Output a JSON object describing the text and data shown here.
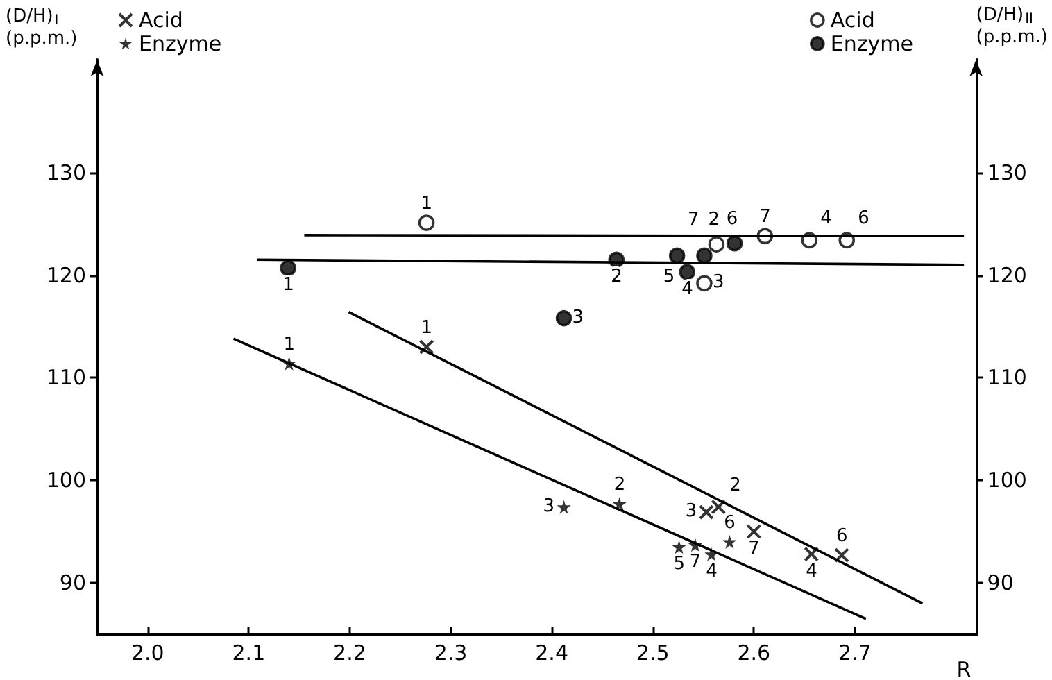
{
  "chart_data": {
    "type": "scatter",
    "xlabel": "R",
    "ylabel": "(D/H)$_{I}$\n(p.p.m.)",
    "y2label": "(D/H)$_{II}$\n(p.p.m.)",
    "xlim": [
      1.95,
      2.82
    ],
    "xticks": [
      {
        "value": 2,
        "label": "2.0"
      },
      2.1,
      2.2,
      2.3,
      2.4,
      2.5,
      2.6,
      2.7
    ],
    "ylim": [
      85,
      141
    ],
    "yticks": [
      90,
      100,
      110,
      120,
      130
    ],
    "y2lim": [
      85,
      141
    ],
    "y2ticks": [
      90,
      100,
      110,
      120,
      130
    ],
    "grid": false,
    "legend": "top",
    "series": [
      {
        "name": "Acid",
        "color": "#000000",
        "marker": "cross",
        "x": [
          2.276,
          2.565,
          2.553,
          2.6,
          2.657,
          2.687
        ],
        "values": [
          113.0,
          97.4,
          96.9,
          95.0,
          92.8,
          92.7
        ]
      },
      {
        "name": "Enzyme",
        "color": "#000000",
        "marker": "star",
        "x": [
          2.14,
          2.412,
          2.467,
          2.526,
          2.542,
          2.558,
          2.576
        ],
        "values": [
          111.4,
          97.4,
          97.7,
          93.5,
          93.7,
          92.8,
          94.0
        ]
      },
      {
        "name": "Acid",
        "color": "#ffffff",
        "marker": "circle",
        "axis": "y2",
        "x": [
          2.276,
          2.563,
          2.551,
          2.611,
          2.655,
          2.692
        ],
        "values": [
          125.1,
          123.0,
          119.2,
          123.8,
          123.4,
          123.4
        ]
      },
      {
        "name": "Enzyme",
        "color": "#000000",
        "marker": "circle",
        "axis": "y2",
        "x": [
          2.139,
          2.464,
          2.412,
          2.524,
          2.551,
          2.534,
          2.581
        ],
        "values": [
          120.7,
          121.5,
          115.8,
          121.9,
          121.9,
          120.3,
          123.1
        ]
      },
      {
        "type": "line",
        "color": "#000000",
        "x": [
          2.199,
          2.767
        ],
        "values": [
          116.4,
          88.0
        ]
      },
      {
        "type": "line",
        "color": "#000000",
        "x": [
          2.085,
          2.711
        ],
        "values": [
          113.8,
          86.5
        ]
      },
      {
        "type": "line",
        "color": "#000000",
        "axis": "y2",
        "x": [
          2.155,
          2.808
        ],
        "values": [
          123.9,
          123.8
        ]
      },
      {
        "type": "line",
        "color": "#000000",
        "axis": "y2",
        "x": [
          2.108,
          2.808
        ],
        "values": [
          121.5,
          121.0
        ]
      }
    ],
    "annotations": [
      {
        "text": "1",
        "x": 2.276,
        "y": 113.0
      },
      {
        "text": "2",
        "x": 2.565,
        "y": 97.4
      },
      {
        "text": "3",
        "x": 2.553,
        "y": 96.9
      },
      {
        "text": "7",
        "x": 2.6,
        "y": 95.0
      },
      {
        "text": "4",
        "x": 2.657,
        "y": 92.8
      },
      {
        "text": "6",
        "x": 2.687,
        "y": 92.7
      },
      {
        "text": "1",
        "x": 2.14,
        "y": 111.4
      },
      {
        "text": "3",
        "x": 2.412,
        "y": 97.4
      },
      {
        "text": "2",
        "x": 2.467,
        "y": 97.7
      },
      {
        "text": "5",
        "x": 2.526,
        "y": 93.5
      },
      {
        "text": "7",
        "x": 2.542,
        "y": 93.7
      },
      {
        "text": "4",
        "x": 2.558,
        "y": 92.8
      },
      {
        "text": "6",
        "x": 2.576,
        "y": 94.0
      },
      {
        "text": "1",
        "x": 2.276,
        "y": 125.1
      },
      {
        "text": "2",
        "x": 2.563,
        "y": 123.0
      },
      {
        "text": "3",
        "x": 2.551,
        "y": 119.2
      },
      {
        "text": "7",
        "x": 2.611,
        "y": 123.8
      },
      {
        "text": "4",
        "x": 2.655,
        "y": 123.4
      },
      {
        "text": "6",
        "x": 2.692,
        "y": 123.4
      },
      {
        "text": "1",
        "x": 2.139,
        "y": 120.7
      },
      {
        "text": "2",
        "x": 2.464,
        "y": 121.5
      },
      {
        "text": "3",
        "x": 2.412,
        "y": 115.8
      },
      {
        "text": "5",
        "x": 2.524,
        "y": 121.9
      },
      {
        "text": "7",
        "x": 2.551,
        "y": 121.9
      },
      {
        "text": "4",
        "x": 2.534,
        "y": 120.3
      },
      {
        "text": "6",
        "x": 2.581,
        "y": 123.1
      }
    ]
  }
}
